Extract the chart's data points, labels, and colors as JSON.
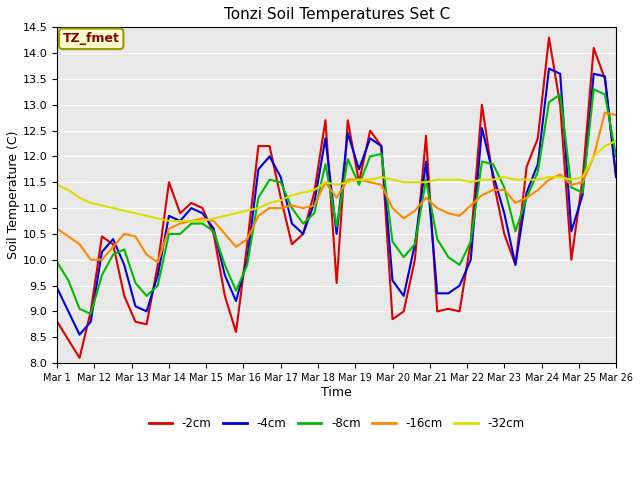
{
  "title": "Tonzi Soil Temperatures Set C",
  "xlabel": "Time",
  "ylabel": "Soil Temperature (C)",
  "ylim": [
    8.0,
    14.5
  ],
  "fig_bg_color": "#ffffff",
  "plot_bg_color": "#e8e8e8",
  "grid_color": "#ffffff",
  "annotation_text": "TZ_fmet",
  "annotation_color": "#8B0000",
  "annotation_bg": "#ffffcc",
  "annotation_border": "#999900",
  "x_tick_labels": [
    "Mar 1",
    "Mar 12",
    "Mar 13",
    "Mar 14",
    "Mar 15",
    "Mar 16",
    "Mar 17",
    "Mar 18",
    "Mar 19",
    "Mar 20",
    "Mar 21",
    "Mar 22",
    "Mar 23",
    "Mar 24",
    "Mar 25",
    "Mar 26"
  ],
  "series_keys": [
    "-2cm",
    "-4cm",
    "-8cm",
    "-16cm",
    "-32cm"
  ],
  "series_colors": {
    "-2cm": "#dd0000",
    "-4cm": "#0000dd",
    "-8cm": "#00bb00",
    "-16cm": "#ff8800",
    "-32cm": "#dddd00"
  },
  "lw": 1.5,
  "data": {
    "-2cm": [
      8.8,
      8.45,
      8.1,
      9.0,
      10.45,
      10.3,
      9.3,
      8.8,
      8.75,
      9.9,
      11.5,
      10.9,
      11.1,
      11.0,
      10.5,
      9.3,
      8.6,
      10.3,
      12.2,
      12.2,
      11.2,
      10.3,
      10.5,
      11.3,
      12.7,
      9.55,
      12.7,
      11.5,
      12.5,
      12.2,
      8.85,
      9.0,
      10.0,
      12.4,
      9.0,
      9.05,
      9.0,
      10.35,
      13.0,
      11.55,
      10.5,
      9.9,
      11.8,
      12.35,
      14.3,
      13.0,
      10.0,
      11.55,
      14.1,
      13.5,
      11.6
    ],
    "-4cm": [
      9.45,
      9.0,
      8.55,
      8.8,
      10.15,
      10.4,
      9.9,
      9.1,
      9.0,
      9.7,
      10.85,
      10.75,
      11.0,
      10.9,
      10.6,
      9.7,
      9.2,
      10.0,
      11.75,
      12.0,
      11.6,
      10.7,
      10.5,
      11.1,
      12.35,
      10.5,
      12.45,
      11.75,
      12.35,
      12.2,
      9.6,
      9.3,
      10.3,
      11.9,
      9.35,
      9.35,
      9.5,
      10.0,
      12.55,
      11.65,
      10.9,
      9.9,
      11.3,
      11.85,
      13.7,
      13.6,
      10.55,
      11.25,
      13.6,
      13.55,
      11.6
    ],
    "-8cm": [
      9.95,
      9.6,
      9.05,
      8.95,
      9.7,
      10.1,
      10.2,
      9.55,
      9.3,
      9.5,
      10.5,
      10.5,
      10.7,
      10.7,
      10.55,
      9.9,
      9.4,
      9.9,
      11.2,
      11.55,
      11.5,
      11.0,
      10.7,
      10.9,
      11.85,
      10.65,
      11.95,
      11.45,
      12.0,
      12.05,
      10.35,
      10.05,
      10.3,
      11.55,
      10.4,
      10.05,
      9.9,
      10.35,
      11.9,
      11.85,
      11.4,
      10.55,
      11.2,
      11.7,
      13.05,
      13.2,
      11.4,
      11.3,
      13.3,
      13.2,
      12.0
    ],
    "-16cm": [
      10.6,
      10.45,
      10.3,
      10.0,
      10.0,
      10.25,
      10.5,
      10.45,
      10.1,
      9.95,
      10.6,
      10.7,
      10.75,
      10.8,
      10.75,
      10.5,
      10.25,
      10.4,
      10.85,
      11.0,
      11.0,
      11.05,
      11.0,
      11.05,
      11.5,
      11.2,
      11.55,
      11.55,
      11.5,
      11.45,
      11.0,
      10.8,
      10.95,
      11.2,
      11.0,
      10.9,
      10.85,
      11.05,
      11.25,
      11.35,
      11.35,
      11.1,
      11.2,
      11.35,
      11.55,
      11.65,
      11.45,
      11.5,
      12.0,
      12.85,
      12.8
    ],
    "-32cm": [
      11.45,
      11.35,
      11.2,
      11.1,
      11.05,
      11.0,
      10.95,
      10.9,
      10.85,
      10.8,
      10.75,
      10.75,
      10.75,
      10.75,
      10.8,
      10.85,
      10.9,
      10.95,
      11.0,
      11.1,
      11.15,
      11.25,
      11.3,
      11.35,
      11.5,
      11.45,
      11.5,
      11.55,
      11.55,
      11.6,
      11.55,
      11.5,
      11.5,
      11.5,
      11.55,
      11.55,
      11.55,
      11.5,
      11.55,
      11.55,
      11.6,
      11.55,
      11.55,
      11.55,
      11.6,
      11.6,
      11.55,
      11.6,
      12.0,
      12.2,
      12.3
    ]
  }
}
